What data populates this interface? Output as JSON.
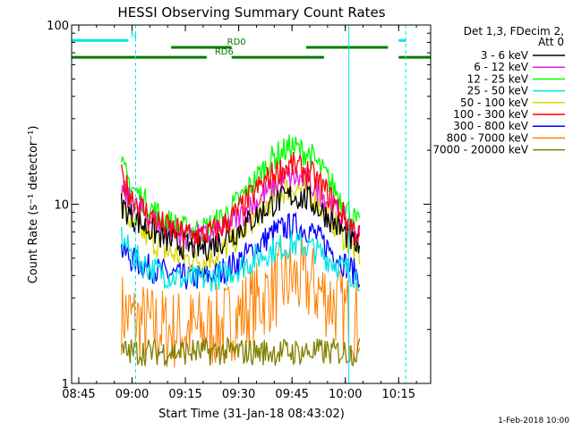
{
  "chart_data": {
    "type": "line",
    "title": "HESSI Observing Summary Count Rates",
    "xlabel": "Start Time (31-Jan-18 08:43:02)",
    "ylabel": "Count Rate (s⁻¹ detector⁻¹)",
    "yscale": "log",
    "ylim": [
      1,
      100
    ],
    "xlim": [
      "08:43",
      "10:24"
    ],
    "x_ticks": [
      "08:45",
      "09:00",
      "09:15",
      "09:30",
      "09:45",
      "10:00",
      "10:15"
    ],
    "y_ticks": [
      "1",
      "10",
      "100"
    ],
    "grid": false,
    "legend_position": "right",
    "legend_title": "Det 1,3, FDecim 2, Att 0",
    "legend_title_lines": [
      "Det 1,3, FDecim 2,",
      "Att 0"
    ],
    "footer_timestamp": "1-Feb-2018 10:00",
    "x": [
      "08:57",
      "09:00",
      "09:05",
      "09:10",
      "09:15",
      "09:20",
      "09:25",
      "09:30",
      "09:35",
      "09:40",
      "09:45",
      "09:50",
      "09:55",
      "10:00",
      "10:04"
    ],
    "series": [
      {
        "name": "3 - 6 keV",
        "color": "#000000",
        "values": [
          10,
          8.5,
          7.2,
          6.3,
          5.8,
          5.7,
          6.2,
          7.2,
          8.6,
          10.2,
          11.2,
          10.5,
          8.6,
          6.8,
          5.6
        ]
      },
      {
        "name": "6 - 12 keV",
        "color": "#e020e0",
        "values": [
          12,
          10,
          8.3,
          7.2,
          6.6,
          6.5,
          7.1,
          8.4,
          10.4,
          12.8,
          14.2,
          13.2,
          10.5,
          8.0,
          6.4
        ]
      },
      {
        "name": "12 - 25 keV",
        "color": "#00ff00",
        "values": [
          16,
          12.5,
          9.6,
          8.0,
          7.2,
          7.2,
          8.2,
          10.4,
          14,
          18.5,
          21,
          19,
          14,
          9.8,
          7.4
        ]
      },
      {
        "name": "25 - 50 keV",
        "color": "#00e5e5",
        "values": [
          6.5,
          5.2,
          4.4,
          4.0,
          3.8,
          3.8,
          4.0,
          4.4,
          5.0,
          5.6,
          6.0,
          5.8,
          5.0,
          4.3,
          3.9
        ]
      },
      {
        "name": "50 - 100 keV",
        "color": "#d8d800",
        "values": [
          9.5,
          7.8,
          6.4,
          5.4,
          5.0,
          4.9,
          5.4,
          6.6,
          8.6,
          11,
          12.6,
          11.6,
          8.8,
          6.4,
          5.2
        ]
      },
      {
        "name": "100 - 300 keV",
        "color": "#ff0000",
        "values": [
          14,
          11,
          8.6,
          7.4,
          6.8,
          6.7,
          7.4,
          9.2,
          12,
          15,
          16.5,
          15,
          11.5,
          8.4,
          6.6
        ]
      },
      {
        "name": "300 - 800 keV",
        "color": "#0000ff",
        "values": [
          5.6,
          4.9,
          4.4,
          4.1,
          3.9,
          3.9,
          4.2,
          4.8,
          5.8,
          7.0,
          7.6,
          7.2,
          5.8,
          4.6,
          4.0
        ]
      },
      {
        "name": "800 - 7000 keV",
        "color": "#ff8000",
        "values": [
          2.5,
          2.3,
          2.1,
          2.0,
          2.0,
          2.0,
          2.1,
          2.4,
          2.8,
          3.4,
          3.8,
          3.6,
          3.0,
          2.5,
          2.2
        ]
      },
      {
        "name": "7000 - 20000 keV",
        "color": "#808000",
        "values": [
          1.5,
          1.5,
          1.5,
          1.5,
          1.5,
          1.5,
          1.5,
          1.5,
          1.5,
          1.5,
          1.5,
          1.5,
          1.5,
          1.5,
          1.5
        ]
      }
    ],
    "flag_bars": [
      {
        "label": "N",
        "color": "#00e5e5",
        "level": 82,
        "segments": [
          [
            "08:43",
            "08:59"
          ],
          [
            "10:15",
            "10:17"
          ]
        ]
      },
      {
        "label": "RD0",
        "color": "#007a00",
        "level": 75,
        "segments": [
          [
            "09:11",
            "09:28"
          ],
          [
            "09:49",
            "10:12"
          ]
        ]
      },
      {
        "label": "RD6",
        "color": "#007a00",
        "level": 66,
        "segments": [
          [
            "08:43",
            "09:21"
          ],
          [
            "09:28",
            "09:54"
          ],
          [
            "10:15",
            "10:24"
          ]
        ]
      }
    ],
    "vlines": [
      {
        "time": "08:43",
        "style": "solid",
        "color": "#00e5e5"
      },
      {
        "time": "09:01",
        "style": "dashed",
        "color": "#00e5e5"
      },
      {
        "time": "10:01",
        "style": "solid",
        "color": "#00e5e5"
      },
      {
        "time": "10:17",
        "style": "dashed",
        "color": "#00e5e5"
      }
    ]
  }
}
